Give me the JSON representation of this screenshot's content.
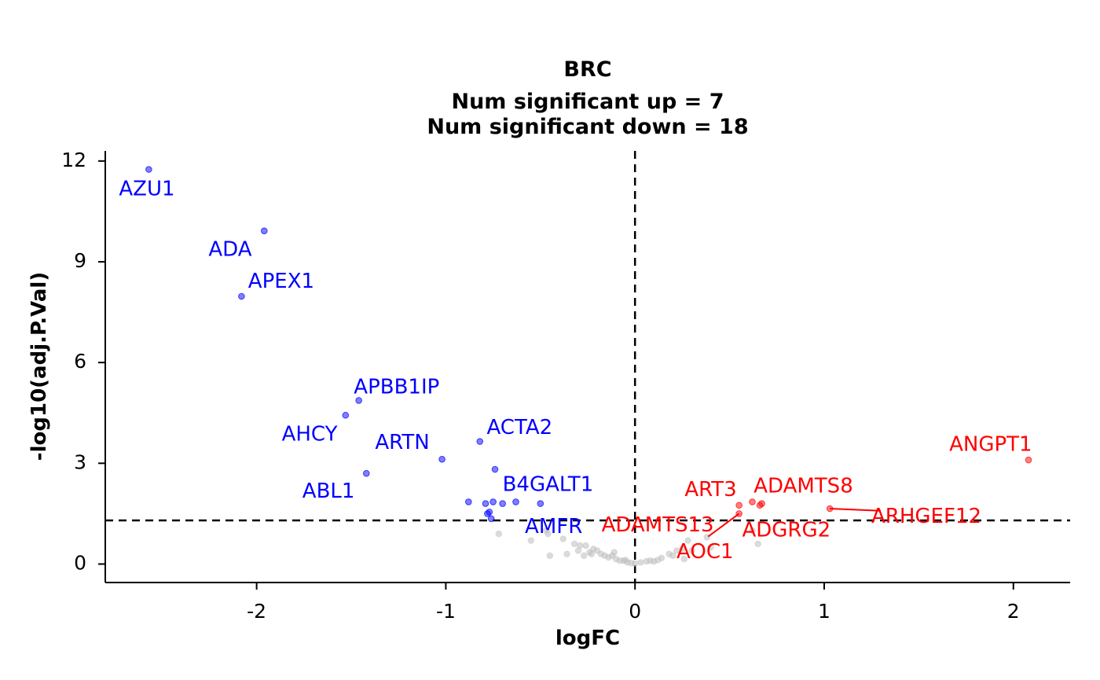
{
  "chart_data": {
    "type": "scatter",
    "title": "BRC",
    "subtitle_lines": [
      "Num significant up = 7",
      "Num significant down = 18"
    ],
    "xlabel": "logFC",
    "ylabel": "-log10(adj.P.Val)",
    "xlim": [
      -2.8,
      2.3
    ],
    "ylim": [
      -0.55,
      12.3
    ],
    "xticks": [
      -2,
      -1,
      0,
      1,
      2
    ],
    "yticks": [
      0,
      3,
      6,
      9,
      12
    ],
    "xtick_labels": [
      "-2",
      "-1",
      "0",
      "1",
      "2"
    ],
    "ytick_labels": [
      "0",
      "3",
      "6",
      "9",
      "12"
    ],
    "threshold_y": 1.3,
    "threshold_x": 0,
    "grid": false,
    "legend": "none",
    "colors": {
      "down": "#0000ff",
      "up": "#ff0000",
      "ns": "#bebebe",
      "line": "#000000"
    },
    "series": [
      {
        "group": "down",
        "points": [
          {
            "x": -2.57,
            "y": 11.75
          },
          {
            "x": -1.96,
            "y": 9.92
          },
          {
            "x": -2.08,
            "y": 7.97
          },
          {
            "x": -1.46,
            "y": 4.87
          },
          {
            "x": -1.53,
            "y": 4.43
          },
          {
            "x": -1.42,
            "y": 2.7
          },
          {
            "x": -1.02,
            "y": 3.12
          },
          {
            "x": -0.82,
            "y": 3.65
          },
          {
            "x": -0.74,
            "y": 2.82
          },
          {
            "x": -0.88,
            "y": 1.85
          },
          {
            "x": -0.79,
            "y": 1.8
          },
          {
            "x": -0.75,
            "y": 1.85
          },
          {
            "x": -0.7,
            "y": 1.8
          },
          {
            "x": -0.63,
            "y": 1.85
          },
          {
            "x": -0.5,
            "y": 1.8
          },
          {
            "x": -0.78,
            "y": 1.5
          },
          {
            "x": -0.77,
            "y": 1.55
          },
          {
            "x": -0.76,
            "y": 1.35
          }
        ]
      },
      {
        "group": "up",
        "points": [
          {
            "x": 2.08,
            "y": 3.1
          },
          {
            "x": 0.55,
            "y": 1.75
          },
          {
            "x": 0.62,
            "y": 1.85
          },
          {
            "x": 0.67,
            "y": 1.8
          },
          {
            "x": 0.66,
            "y": 1.75
          },
          {
            "x": 1.03,
            "y": 1.65
          },
          {
            "x": 0.55,
            "y": 1.5
          }
        ]
      },
      {
        "group": "ns",
        "points": [
          {
            "x": -0.72,
            "y": 0.9
          },
          {
            "x": -0.55,
            "y": 0.7
          },
          {
            "x": -0.47,
            "y": 1.0
          },
          {
            "x": -0.46,
            "y": 0.9
          },
          {
            "x": -0.45,
            "y": 0.25
          },
          {
            "x": -0.38,
            "y": 0.75
          },
          {
            "x": -0.36,
            "y": 0.3
          },
          {
            "x": -0.32,
            "y": 0.6
          },
          {
            "x": -0.3,
            "y": 0.4
          },
          {
            "x": -0.29,
            "y": 0.55
          },
          {
            "x": -0.27,
            "y": 0.25
          },
          {
            "x": -0.26,
            "y": 0.55
          },
          {
            "x": -0.24,
            "y": 0.35
          },
          {
            "x": -0.23,
            "y": 0.3
          },
          {
            "x": -0.22,
            "y": 0.45
          },
          {
            "x": -0.2,
            "y": 0.4
          },
          {
            "x": -0.18,
            "y": 0.3
          },
          {
            "x": -0.16,
            "y": 0.25
          },
          {
            "x": -0.14,
            "y": 0.2
          },
          {
            "x": -0.12,
            "y": 0.25
          },
          {
            "x": -0.1,
            "y": 0.15
          },
          {
            "x": -0.08,
            "y": 0.1
          },
          {
            "x": -0.06,
            "y": 0.1
          },
          {
            "x": -0.04,
            "y": 0.05
          },
          {
            "x": -0.02,
            "y": 0.03
          },
          {
            "x": 0.0,
            "y": 0.02
          },
          {
            "x": 0.03,
            "y": 0.05
          },
          {
            "x": 0.06,
            "y": 0.08
          },
          {
            "x": 0.08,
            "y": 0.1
          },
          {
            "x": 0.1,
            "y": 0.08
          },
          {
            "x": 0.12,
            "y": 0.12
          },
          {
            "x": 0.18,
            "y": 0.3
          },
          {
            "x": 0.2,
            "y": 0.25
          },
          {
            "x": 0.22,
            "y": 0.4
          },
          {
            "x": 0.25,
            "y": 0.45
          },
          {
            "x": 0.26,
            "y": 0.15
          },
          {
            "x": 0.28,
            "y": 0.7
          },
          {
            "x": 0.3,
            "y": 0.4
          },
          {
            "x": 0.38,
            "y": 0.8
          },
          {
            "x": 0.4,
            "y": 0.5
          },
          {
            "x": 0.65,
            "y": 0.6
          },
          {
            "x": 0.62,
            "y": 1.0
          },
          {
            "x": -0.05,
            "y": 0.12
          },
          {
            "x": 0.14,
            "y": 0.18
          },
          {
            "x": -0.11,
            "y": 0.35
          }
        ]
      }
    ],
    "annotations": [
      {
        "text": "AZU1",
        "group": "down",
        "x": -2.57,
        "y": 11.75,
        "lx": -2.58,
        "ly": 11.15
      },
      {
        "text": "ADA",
        "group": "down",
        "x": -1.96,
        "y": 9.92,
        "lx": -2.14,
        "ly": 9.35
      },
      {
        "text": "APEX1",
        "group": "down",
        "x": -2.08,
        "y": 7.97,
        "lx": -1.87,
        "ly": 8.4
      },
      {
        "text": "APBB1IP",
        "group": "down",
        "x": -1.46,
        "y": 4.87,
        "lx": -1.26,
        "ly": 5.25
      },
      {
        "text": "AHCY",
        "group": "down",
        "x": -1.53,
        "y": 4.43,
        "lx": -1.72,
        "ly": 3.85
      },
      {
        "text": "ARTN",
        "group": "down",
        "x": -1.02,
        "y": 3.12,
        "lx": -1.23,
        "ly": 3.6
      },
      {
        "text": "ABL1",
        "group": "down",
        "x": -1.42,
        "y": 2.7,
        "lx": -1.62,
        "ly": 2.15
      },
      {
        "text": "ACTA2",
        "group": "down",
        "x": -0.82,
        "y": 3.65,
        "lx": -0.61,
        "ly": 4.05
      },
      {
        "text": "B4GALT1",
        "group": "down",
        "x": -0.5,
        "y": 1.8,
        "lx": -0.46,
        "ly": 2.35
      },
      {
        "text": "AMFR",
        "group": "down",
        "x": -0.76,
        "y": 1.35,
        "lx": -0.43,
        "ly": 1.1
      },
      {
        "text": "ANGPT1",
        "group": "up",
        "x": 2.08,
        "y": 3.1,
        "lx": 1.88,
        "ly": 3.55
      },
      {
        "text": "ART3",
        "group": "up",
        "x": 0.55,
        "y": 1.75,
        "lx": 0.4,
        "ly": 2.2
      },
      {
        "text": "ADAMTS8",
        "group": "up",
        "x": 0.66,
        "y": 1.8,
        "lx": 0.89,
        "ly": 2.3
      },
      {
        "text": "ADAMTS13",
        "group": "up",
        "x": 0.55,
        "y": 1.5,
        "lx": 0.12,
        "ly": 1.15
      },
      {
        "text": "ARHGEF12",
        "group": "up",
        "x": 1.03,
        "y": 1.65,
        "lx": 1.54,
        "ly": 1.4
      },
      {
        "text": "ADGRG2",
        "group": "up",
        "x": 0.67,
        "y": 1.8,
        "lx": 0.8,
        "ly": 1.0
      },
      {
        "text": "AOC1",
        "group": "up",
        "x": 0.55,
        "y": 1.5,
        "lx": 0.37,
        "ly": 0.35
      }
    ]
  }
}
